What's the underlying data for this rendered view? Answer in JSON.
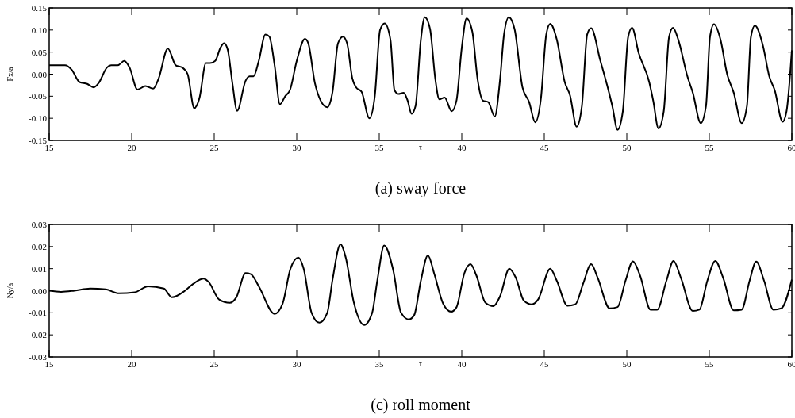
{
  "chart_data": [
    {
      "type": "line",
      "title": "(a) sway force",
      "xlabel": "τ",
      "ylabel": "Fx/a",
      "xlim": [
        15,
        60
      ],
      "ylim": [
        -0.15,
        0.15
      ],
      "xticks": [
        15,
        20,
        25,
        30,
        35,
        40,
        45,
        50,
        55,
        60
      ],
      "yticks": [
        {
          "value": -0.15,
          "label": "-0.15"
        },
        {
          "value": -0.1,
          "label": "-0.10"
        },
        {
          "value": -0.05,
          "label": "-0.05"
        },
        {
          "value": 0,
          "label": "0.00"
        },
        {
          "value": 0.05,
          "label": "0.05"
        },
        {
          "value": 0.1,
          "label": "0.10"
        },
        {
          "value": 0.15,
          "label": "0.15"
        }
      ],
      "series": [
        {
          "color": "#000000",
          "x": [
            15,
            15.96,
            16.36,
            16.84,
            17.3,
            17.7,
            18.0,
            18.5,
            18.75,
            19.15,
            19.55,
            19.87,
            20.35,
            20.83,
            21.3,
            21.63,
            22.19,
            22.67,
            23.07,
            23.39,
            23.79,
            24.1,
            24.5,
            24.74,
            25.06,
            25.38,
            25.6,
            25.82,
            26.1,
            26.39,
            26.9,
            27.14,
            27.38,
            27.7,
            28.1,
            28.34,
            28.66,
            28.98,
            29.3,
            29.6,
            30.0,
            30.5,
            30.7,
            31.1,
            31.45,
            31.85,
            32.17,
            32.5,
            32.8,
            33.05,
            33.37,
            33.6,
            33.93,
            34.4,
            34.73,
            35.05,
            35.33,
            35.68,
            35.92,
            36.16,
            36.48,
            36.72,
            36.96,
            37.2,
            37.52,
            37.76,
            38.08,
            38.4,
            38.64,
            38.96,
            39.39,
            39.68,
            40.0,
            40.29,
            40.64,
            40.96,
            41.28,
            41.6,
            42.0,
            42.32,
            42.56,
            42.85,
            43.2,
            43.68,
            44.08,
            44.45,
            44.8,
            45.12,
            45.36,
            45.76,
            46.24,
            46.56,
            46.96,
            47.28,
            47.6,
            47.84,
            48.4,
            48.8,
            49.12,
            49.44,
            49.76,
            50.08,
            50.32,
            50.72,
            51.36,
            51.6,
            51.92,
            52.24,
            52.56,
            52.8,
            53.12,
            53.68,
            54.0,
            54.48,
            54.8,
            55.04,
            55.28,
            55.68,
            56.08,
            56.48,
            56.96,
            57.28,
            57.52,
            57.76,
            58.24,
            58.64,
            58.96,
            59.44,
            59.68,
            60
          ],
          "values": [
            0.02,
            0.02,
            0.01,
            -0.018,
            -0.022,
            -0.03,
            -0.02,
            0.015,
            0.02,
            0.02,
            0.03,
            0.015,
            -0.035,
            -0.027,
            -0.033,
            -0.01,
            0.058,
            0.02,
            0.015,
            0.0,
            -0.077,
            -0.055,
            0.025,
            0.025,
            0.03,
            0.06,
            0.07,
            0.055,
            -0.02,
            -0.083,
            -0.015,
            -0.005,
            -0.005,
            0.03,
            0.09,
            0.085,
            0.02,
            -0.068,
            -0.05,
            -0.035,
            0.03,
            0.08,
            0.07,
            -0.02,
            -0.06,
            -0.075,
            -0.04,
            0.07,
            0.085,
            0.07,
            -0.01,
            -0.03,
            -0.04,
            -0.1,
            -0.05,
            0.1,
            0.115,
            0.078,
            -0.036,
            -0.045,
            -0.042,
            -0.06,
            -0.09,
            -0.072,
            0.078,
            0.129,
            0.102,
            -0.012,
            -0.057,
            -0.053,
            -0.084,
            -0.06,
            0.06,
            0.126,
            0.096,
            -0.012,
            -0.06,
            -0.063,
            -0.096,
            -0.012,
            0.09,
            0.129,
            0.102,
            -0.03,
            -0.063,
            -0.109,
            -0.054,
            0.09,
            0.114,
            0.078,
            -0.018,
            -0.048,
            -0.119,
            -0.072,
            0.09,
            0.104,
            0.03,
            -0.024,
            -0.072,
            -0.126,
            -0.084,
            0.084,
            0.105,
            0.048,
            -0.018,
            -0.06,
            -0.123,
            -0.084,
            0.084,
            0.105,
            0.078,
            -0.006,
            -0.042,
            -0.111,
            -0.072,
            0.084,
            0.113,
            0.078,
            0.0,
            -0.042,
            -0.111,
            -0.072,
            0.084,
            0.11,
            0.066,
            -0.006,
            -0.036,
            -0.108,
            -0.084,
            0.054
          ]
        }
      ]
    },
    {
      "type": "line",
      "title": "(c) roll moment",
      "xlabel": "τ",
      "ylabel": "Ny/a",
      "xlim": [
        15,
        60
      ],
      "ylim": [
        -0.03,
        0.03
      ],
      "xticks": [
        15,
        20,
        25,
        30,
        35,
        40,
        45,
        50,
        55,
        60
      ],
      "yticks": [
        {
          "value": -0.03,
          "label": "-0.03"
        },
        {
          "value": -0.02,
          "label": "-0.02"
        },
        {
          "value": -0.01,
          "label": "-0.01"
        },
        {
          "value": 0,
          "label": "0.00"
        },
        {
          "value": 0.01,
          "label": "0.01"
        },
        {
          "value": 0.02,
          "label": "0.02"
        },
        {
          "value": 0.03,
          "label": "0.03"
        }
      ],
      "series": [
        {
          "color": "#000000",
          "x": [
            15,
            15.72,
            16.52,
            17.48,
            18.43,
            19.23,
            20.19,
            20.99,
            21.95,
            22.43,
            23.23,
            23.71,
            24.35,
            24.66,
            25.3,
            25.94,
            26.34,
            26.9,
            27.22,
            27.7,
            28.66,
            29.14,
            29.62,
            30.1,
            30.42,
            30.9,
            31.37,
            31.85,
            32.17,
            32.65,
            32.97,
            33.45,
            34.09,
            34.57,
            34.89,
            35.3,
            35.84,
            36.32,
            36.8,
            37.12,
            37.52,
            37.95,
            38.32,
            38.88,
            39.36,
            39.68,
            40.16,
            40.53,
            40.88,
            41.44,
            41.92,
            42.32,
            42.88,
            43.28,
            43.76,
            44.24,
            44.64,
            45.36,
            45.76,
            46.4,
            46.88,
            47.36,
            47.84,
            48.24,
            48.96,
            49.44,
            49.92,
            50.37,
            50.8,
            51.44,
            51.84,
            52.4,
            52.83,
            53.28,
            54.0,
            54.4,
            54.88,
            55.36,
            55.84,
            56.48,
            56.96,
            57.44,
            57.84,
            58.32,
            58.88,
            59.36,
            60
          ],
          "values": [
            0,
            -0.0005,
            0,
            0.001,
            0.0006,
            -0.0012,
            -0.0007,
            0.002,
            0.001,
            -0.003,
            0.0,
            0.003,
            0.0055,
            0.004,
            -0.004,
            -0.0055,
            -0.003,
            0.008,
            0.0075,
            0.002,
            -0.0105,
            -0.006,
            0.01,
            0.015,
            0.01,
            -0.01,
            -0.0145,
            -0.01,
            0.005,
            0.021,
            0.015,
            -0.005,
            -0.0155,
            -0.01,
            0.005,
            0.0205,
            0.0095,
            -0.01,
            -0.013,
            -0.011,
            0.0045,
            0.016,
            0.008,
            -0.006,
            -0.0095,
            -0.0075,
            0.008,
            0.012,
            0.007,
            -0.0055,
            -0.007,
            -0.0025,
            0.01,
            0.0058,
            -0.0045,
            -0.0062,
            -0.0038,
            0.01,
            0.0045,
            -0.0068,
            -0.0062,
            0.0033,
            0.012,
            0.0058,
            -0.008,
            -0.0074,
            0.0045,
            0.0133,
            0.007,
            -0.0086,
            -0.0086,
            0.0045,
            0.0135,
            0.0058,
            -0.0092,
            -0.0086,
            0.0045,
            0.0135,
            0.0058,
            -0.0089,
            -0.0086,
            0.0045,
            0.0132,
            0.0045,
            -0.0086,
            -0.008,
            0.005
          ]
        }
      ]
    }
  ]
}
